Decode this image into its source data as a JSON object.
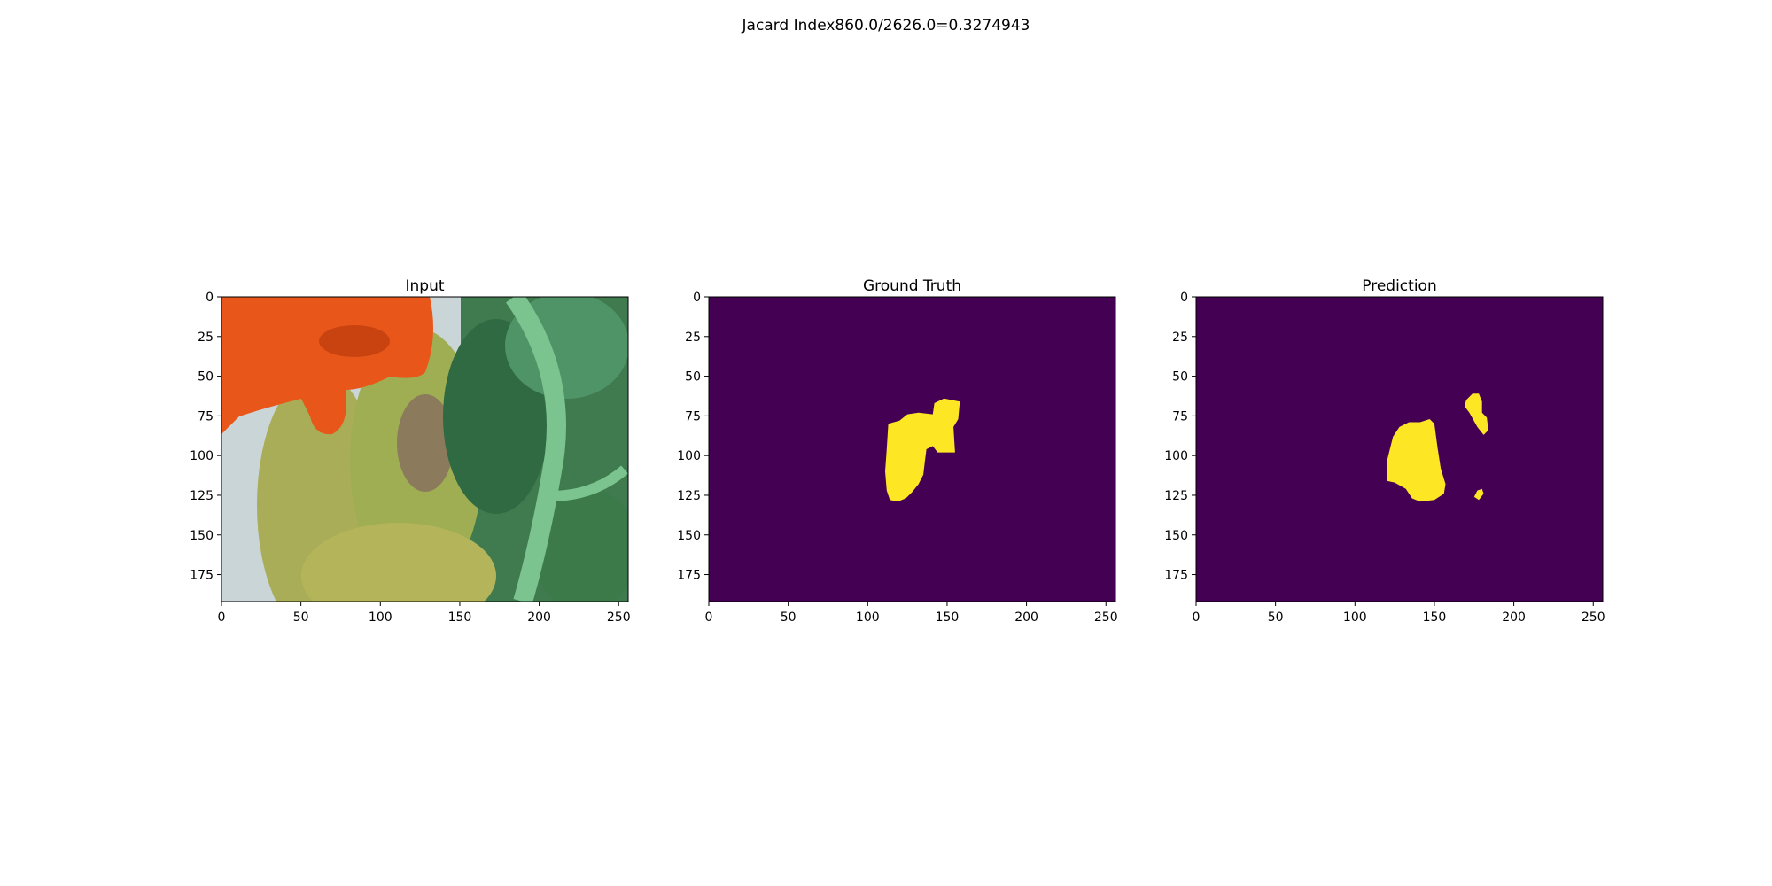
{
  "figure": {
    "suptitle": "Jacard Index860.0/2626.0=0.3274943"
  },
  "colors": {
    "mask_background": "#440154",
    "mask_foreground": "#fde725",
    "axis": "#000000",
    "glove": "#e8561a",
    "leaf": "#9fae52",
    "leaf_dark": "#3f7b4e",
    "stem": "#7cc48f",
    "backdrop": "#c9d5d6"
  },
  "chart_data": [
    {
      "type": "image",
      "title": "Input",
      "content": "photo",
      "xlim": [
        0,
        256
      ],
      "ylim": [
        192,
        0
      ],
      "xticks": [
        0,
        50,
        100,
        150,
        200,
        250
      ],
      "yticks": [
        0,
        25,
        50,
        75,
        100,
        125,
        150,
        175
      ]
    },
    {
      "type": "heatmap",
      "title": "Ground Truth",
      "content": "mask",
      "xlim": [
        0,
        256
      ],
      "ylim": [
        192,
        0
      ],
      "xticks": [
        0,
        50,
        100,
        150,
        200,
        250
      ],
      "yticks": [
        0,
        25,
        50,
        75,
        100,
        125,
        150,
        175
      ],
      "regions": [
        [
          [
            113,
            80
          ],
          [
            120,
            78
          ],
          [
            125,
            74
          ],
          [
            132,
            73
          ],
          [
            141,
            74
          ],
          [
            142,
            67
          ],
          [
            148,
            64
          ],
          [
            158,
            66
          ],
          [
            157,
            77
          ],
          [
            154,
            82
          ],
          [
            155,
            98
          ],
          [
            144,
            98
          ],
          [
            141,
            94
          ],
          [
            137,
            96
          ],
          [
            136,
            104
          ],
          [
            135,
            112
          ],
          [
            132,
            118
          ],
          [
            128,
            123
          ],
          [
            124,
            127
          ],
          [
            119,
            129
          ],
          [
            114,
            128
          ],
          [
            112,
            122
          ],
          [
            111,
            110
          ],
          [
            112,
            96
          ]
        ]
      ]
    },
    {
      "type": "heatmap",
      "title": "Prediction",
      "content": "mask",
      "xlim": [
        0,
        256
      ],
      "ylim": [
        192,
        0
      ],
      "xticks": [
        0,
        50,
        100,
        150,
        200,
        250
      ],
      "yticks": [
        0,
        25,
        50,
        75,
        100,
        125,
        150,
        175
      ],
      "regions": [
        [
          [
            122,
            96
          ],
          [
            124,
            88
          ],
          [
            128,
            82
          ],
          [
            134,
            79
          ],
          [
            141,
            79
          ],
          [
            147,
            77
          ],
          [
            150,
            80
          ],
          [
            152,
            95
          ],
          [
            154,
            108
          ],
          [
            157,
            118
          ],
          [
            156,
            124
          ],
          [
            150,
            128
          ],
          [
            141,
            129
          ],
          [
            136,
            127
          ],
          [
            132,
            121
          ],
          [
            125,
            117
          ],
          [
            120,
            116
          ],
          [
            120,
            104
          ]
        ],
        [
          [
            170,
            65
          ],
          [
            174,
            61
          ],
          [
            178,
            61
          ],
          [
            180,
            66
          ],
          [
            180,
            73
          ],
          [
            183,
            76
          ],
          [
            184,
            84
          ],
          [
            181,
            87
          ],
          [
            177,
            82
          ],
          [
            172,
            73
          ],
          [
            169,
            69
          ]
        ],
        [
          [
            175,
            126
          ],
          [
            177,
            122
          ],
          [
            180,
            121
          ],
          [
            181,
            124
          ],
          [
            178,
            128
          ]
        ]
      ]
    }
  ]
}
